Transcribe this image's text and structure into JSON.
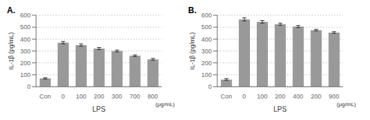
{
  "chart_data": [
    {
      "type": "bar",
      "title": "A.",
      "x_label": "LPS",
      "y_label": "IL-1β (pg/mL)",
      "categories": [
        "Con",
        "0",
        "100",
        "200",
        "300",
        "700",
        "800"
      ],
      "values": [
        70,
        370,
        350,
        320,
        300,
        260,
        230
      ],
      "errors": [
        6,
        10,
        10,
        9,
        8,
        7,
        8
      ],
      "annotation": "(μg/mL)",
      "color": "#999999",
      "ylim": [
        0,
        600
      ],
      "yticks": [
        0,
        100,
        200,
        300,
        400,
        500,
        600
      ],
      "grid": true
    },
    {
      "type": "bar",
      "title": "B.",
      "x_label": "LPS",
      "y_label": "IL-1β (pg/mL)",
      "categories": [
        "Con",
        "0",
        "100",
        "200",
        "400",
        "200",
        "900"
      ],
      "values": [
        60,
        565,
        545,
        525,
        505,
        475,
        455
      ],
      "errors": [
        7,
        13,
        11,
        9,
        9,
        7,
        7
      ],
      "annotation": "(μg/mL)",
      "color": "#999999",
      "ylim": [
        0,
        600
      ],
      "yticks": [
        0,
        100,
        200,
        300,
        400,
        500,
        600
      ],
      "grid": true
    }
  ]
}
